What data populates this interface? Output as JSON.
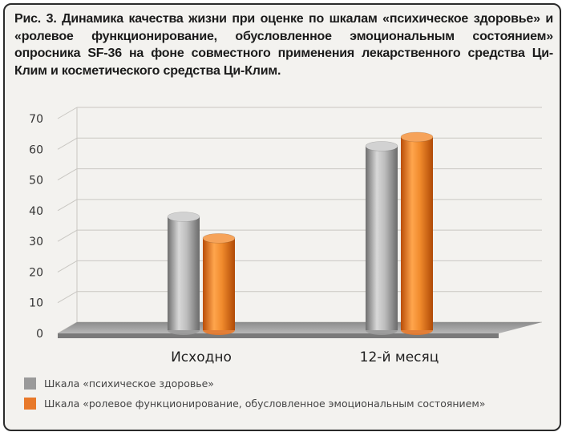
{
  "figure": {
    "caption": "Рис. 3. Динамика качества жизни при оценке по шкалам «психическое здоровье» и «ролевое функционирование, обусловленное эмоциональным состоянием» опросника SF-36 на фоне совместного применения лекарственного средства Ци-Клим и косметического средства Ци-Клим."
  },
  "chart_data": {
    "type": "bar",
    "categories": [
      "Исходно",
      "12-й месяц"
    ],
    "series": [
      {
        "name": "Шкала «психическое здоровье»",
        "values": [
          38,
          61
        ],
        "color": "#9a9a9a"
      },
      {
        "name": "Шкала «ролевое функционирование, обусловленное эмоциональным состоянием»",
        "values": [
          31,
          64
        ],
        "color": "#e8792a"
      }
    ],
    "ylim": [
      0,
      70
    ],
    "yticks": [
      0,
      10,
      20,
      30,
      40,
      50,
      60,
      70
    ],
    "grid": true,
    "legend_position": "bottom-left",
    "style": "3d-cylinder"
  }
}
